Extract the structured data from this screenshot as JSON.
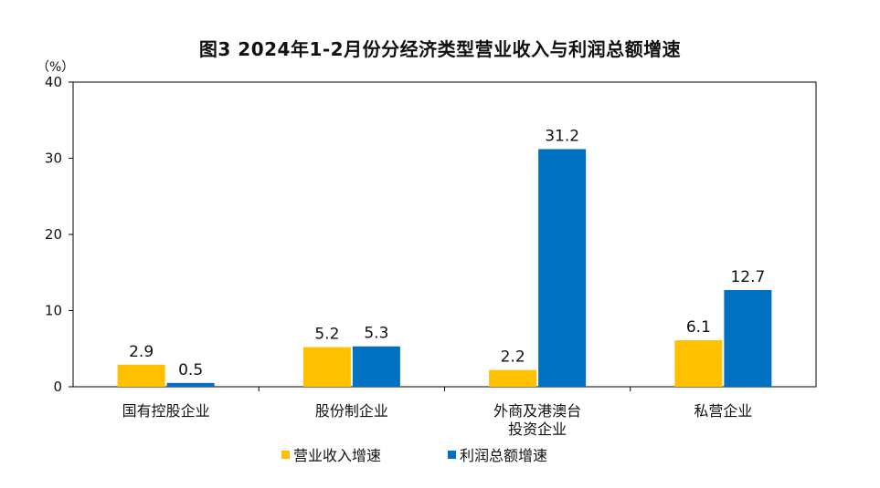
{
  "title": "图3  2024年1-2月份分经济类型营业收入与利润总额增速",
  "unit_label": "（%）",
  "colors": {
    "series1": "#FFC000",
    "series2": "#0070C0",
    "axis": "#000000"
  },
  "chart_data": {
    "type": "bar",
    "title": "图3  2024年1-2月份分经济类型营业收入与利润总额增速",
    "ylabel": "（%）",
    "xlabel": "",
    "ylim": [
      0,
      40
    ],
    "yticks": [
      0,
      10,
      20,
      30,
      40
    ],
    "categories": [
      [
        "国有控股企业"
      ],
      [
        "股份制企业"
      ],
      [
        "外商及港澳台",
        "投资企业"
      ],
      [
        "私营企业"
      ]
    ],
    "series": [
      {
        "name": "营业收入增速",
        "values": [
          2.9,
          5.2,
          2.2,
          6.1
        ],
        "labels": [
          "2.9",
          "5.2",
          "2.2",
          "6.1"
        ]
      },
      {
        "name": "利润总额增速",
        "values": [
          0.5,
          5.3,
          31.2,
          12.7
        ],
        "labels": [
          "0.5",
          "5.3",
          "31.2",
          "12.7"
        ]
      }
    ],
    "legend_position": "bottom-center",
    "grid": false
  }
}
